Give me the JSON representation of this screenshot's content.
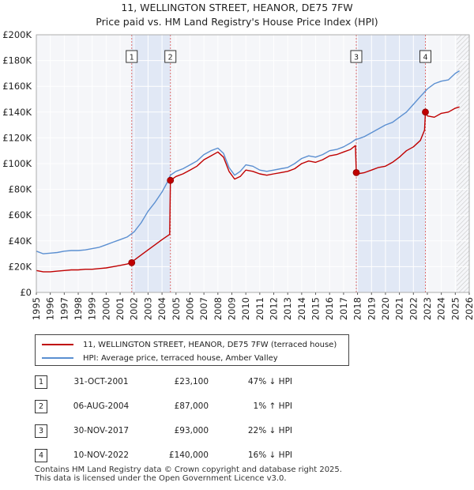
{
  "chart_data": {
    "type": "line",
    "title": "11, WELLINGTON STREET, HEANOR, DE75 7FW",
    "subtitle": "Price paid vs. HM Land Registry's House Price Index (HPI)",
    "xlabel": "",
    "ylabel": "",
    "xlim": [
      1995,
      2026
    ],
    "ylim": [
      0,
      200000
    ],
    "x_ticks": [
      "1995",
      "1996",
      "1997",
      "1998",
      "1999",
      "2000",
      "2001",
      "2002",
      "2003",
      "2004",
      "2005",
      "2006",
      "2007",
      "2008",
      "2009",
      "2010",
      "2011",
      "2012",
      "2013",
      "2014",
      "2015",
      "2016",
      "2017",
      "2018",
      "2019",
      "2020",
      "2021",
      "2022",
      "2023",
      "2024",
      "2025",
      "2026"
    ],
    "y_ticks": [
      "£0",
      "£20K",
      "£40K",
      "£60K",
      "£80K",
      "£100K",
      "£120K",
      "£140K",
      "£160K",
      "£180K",
      "£200K"
    ],
    "grid": true,
    "future_hatch_from": 2025.1,
    "series": [
      {
        "name": "HPI: Average price, terraced house, Amber Valley",
        "color": "#5b8fd1",
        "x": [
          1995.0,
          1995.5,
          1996.0,
          1996.5,
          1997.0,
          1997.5,
          1998.0,
          1998.5,
          1999.0,
          1999.5,
          2000.0,
          2000.5,
          2001.0,
          2001.5,
          2002.0,
          2002.5,
          2003.0,
          2003.5,
          2004.0,
          2004.4,
          2004.6,
          2005.0,
          2005.5,
          2006.0,
          2006.5,
          2007.0,
          2007.5,
          2008.0,
          2008.4,
          2008.8,
          2009.2,
          2009.6,
          2010.0,
          2010.5,
          2011.0,
          2011.5,
          2012.0,
          2012.5,
          2013.0,
          2013.5,
          2014.0,
          2014.5,
          2015.0,
          2015.5,
          2016.0,
          2016.5,
          2017.0,
          2017.5,
          2017.9,
          2018.0,
          2018.5,
          2019.0,
          2019.5,
          2020.0,
          2020.5,
          2021.0,
          2021.5,
          2022.0,
          2022.5,
          2023.0,
          2023.5,
          2024.0,
          2024.5,
          2025.0,
          2025.3
        ],
        "values": [
          32000,
          30000,
          30500,
          31000,
          32000,
          32500,
          32500,
          33000,
          34000,
          35000,
          37000,
          39000,
          41000,
          43000,
          47000,
          54000,
          63000,
          70000,
          78000,
          86000,
          91000,
          94000,
          96000,
          99000,
          102000,
          107000,
          110000,
          112000,
          108000,
          97000,
          91000,
          94000,
          99000,
          98000,
          95000,
          94000,
          95000,
          96000,
          97000,
          100000,
          104000,
          106000,
          105000,
          107000,
          110000,
          111000,
          113000,
          116000,
          119000,
          119000,
          121000,
          124000,
          127000,
          130000,
          132000,
          136000,
          140000,
          146000,
          152000,
          158000,
          162000,
          164000,
          165000,
          170000,
          172000
        ]
      },
      {
        "name": "11, WELLINGTON STREET, HEANOR, DE75 7FW (terraced house)",
        "color": "#c00000",
        "x": [
          1995.0,
          1995.5,
          1996.0,
          1996.5,
          1997.0,
          1997.5,
          1998.0,
          1998.5,
          1999.0,
          1999.5,
          2000.0,
          2000.5,
          2001.0,
          2001.5,
          2001.83,
          2002.0,
          2002.5,
          2003.0,
          2003.5,
          2004.0,
          2004.55,
          2004.6,
          2005.0,
          2005.5,
          2006.0,
          2006.5,
          2007.0,
          2007.5,
          2008.0,
          2008.4,
          2008.8,
          2009.2,
          2009.6,
          2010.0,
          2010.5,
          2011.0,
          2011.5,
          2012.0,
          2012.5,
          2013.0,
          2013.5,
          2014.0,
          2014.5,
          2015.0,
          2015.5,
          2016.0,
          2016.5,
          2017.0,
          2017.5,
          2017.85,
          2017.91,
          2018.0,
          2018.5,
          2019.0,
          2019.5,
          2020.0,
          2020.5,
          2021.0,
          2021.5,
          2022.0,
          2022.5,
          2022.8,
          2022.86,
          2023.0,
          2023.5,
          2024.0,
          2024.5,
          2025.0,
          2025.3
        ],
        "values": [
          17000,
          16000,
          16000,
          16500,
          17000,
          17500,
          17500,
          18000,
          18000,
          18500,
          19000,
          20000,
          21000,
          22000,
          23100,
          25000,
          29000,
          33000,
          37000,
          41000,
          45000,
          87000,
          90000,
          92000,
          95000,
          98000,
          103000,
          106000,
          109000,
          105000,
          94000,
          88000,
          90000,
          95000,
          94000,
          92000,
          91000,
          92000,
          93000,
          94000,
          96000,
          100000,
          102000,
          101000,
          103000,
          106000,
          107000,
          109000,
          111000,
          114000,
          93000,
          92000,
          93000,
          95000,
          97000,
          98000,
          101000,
          105000,
          110000,
          113000,
          118000,
          126000,
          140000,
          137000,
          136000,
          139000,
          140000,
          143000,
          144000
        ]
      }
    ],
    "sales": [
      {
        "num": "1",
        "x": 2001.83,
        "price": 23100,
        "date": "31-OCT-2001",
        "price_label": "£23,100",
        "hpi": "47% ↓ HPI"
      },
      {
        "num": "2",
        "x": 2004.6,
        "price": 87000,
        "date": "06-AUG-2004",
        "price_label": "£87,000",
        "hpi": "1% ↑ HPI"
      },
      {
        "num": "3",
        "x": 2017.91,
        "price": 93000,
        "date": "30-NOV-2017",
        "price_label": "£93,000",
        "hpi": "22% ↓ HPI"
      },
      {
        "num": "4",
        "x": 2022.86,
        "price": 140000,
        "date": "10-NOV-2022",
        "price_label": "£140,000",
        "hpi": "16% ↓ HPI"
      }
    ]
  },
  "legend": {
    "property": "11, WELLINGTON STREET, HEANOR, DE75 7FW (terraced house)",
    "hpi": "HPI: Average price, terraced house, Amber Valley"
  },
  "footer": {
    "line1": "Contains HM Land Registry data © Crown copyright and database right 2025.",
    "line2": "This data is licensed under the Open Government Licence v3.0."
  }
}
